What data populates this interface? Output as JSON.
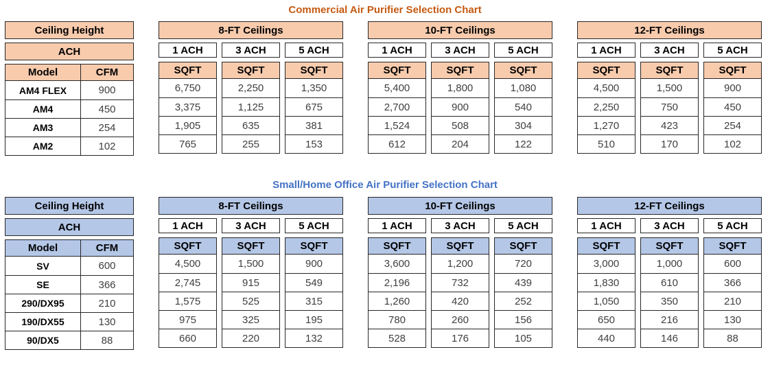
{
  "chart_data": [
    {
      "type": "table",
      "title": "Commercial Air Purifier Selection Chart",
      "title_color": "#C55A11",
      "header_fill": "#F8CBAD",
      "border_color": "#262626",
      "left": {
        "ceiling_height_label": "Ceiling Height",
        "ach_label": "ACH",
        "model_label": "Model",
        "cfm_label": "CFM"
      },
      "rows": [
        {
          "model": "AM4 FLEX",
          "cfm": "900"
        },
        {
          "model": "AM4",
          "cfm": "450"
        },
        {
          "model": "AM3",
          "cfm": "254"
        },
        {
          "model": "AM2",
          "cfm": "102"
        }
      ],
      "groups": [
        {
          "label": "8-FT Ceilings",
          "columns": [
            {
              "ach": "1 ACH",
              "unit": "SQFT",
              "values": [
                "6,750",
                "3,375",
                "1,905",
                "765"
              ]
            },
            {
              "ach": "3 ACH",
              "unit": "SQFT",
              "values": [
                "2,250",
                "1,125",
                "635",
                "255"
              ]
            },
            {
              "ach": "5 ACH",
              "unit": "SQFT",
              "values": [
                "1,350",
                "675",
                "381",
                "153"
              ]
            }
          ]
        },
        {
          "label": "10-FT Ceilings",
          "columns": [
            {
              "ach": "1 ACH",
              "unit": "SQFT",
              "values": [
                "5,400",
                "2,700",
                "1,524",
                "612"
              ]
            },
            {
              "ach": "3 ACH",
              "unit": "SQFT",
              "values": [
                "1,800",
                "900",
                "508",
                "204"
              ]
            },
            {
              "ach": "5 ACH",
              "unit": "SQFT",
              "values": [
                "1,080",
                "540",
                "304",
                "122"
              ]
            }
          ]
        },
        {
          "label": "12-FT Ceilings",
          "columns": [
            {
              "ach": "1 ACH",
              "unit": "SQFT",
              "values": [
                "4,500",
                "2,250",
                "1,270",
                "510"
              ]
            },
            {
              "ach": "3 ACH",
              "unit": "SQFT",
              "values": [
                "1,500",
                "750",
                "423",
                "170"
              ]
            },
            {
              "ach": "5 ACH",
              "unit": "SQFT",
              "values": [
                "900",
                "450",
                "254",
                "102"
              ]
            }
          ]
        }
      ]
    },
    {
      "type": "table",
      "title": "Small/Home Office Air Purifier Selection Chart",
      "title_color": "#4472C4",
      "header_fill": "#B4C7E7",
      "border_color": "#262626",
      "left": {
        "ceiling_height_label": "Ceiling Height",
        "ach_label": "ACH",
        "model_label": "Model",
        "cfm_label": "CFM"
      },
      "rows": [
        {
          "model": "SV",
          "cfm": "600"
        },
        {
          "model": "SE",
          "cfm": "366"
        },
        {
          "model": "290/DX95",
          "cfm": "210"
        },
        {
          "model": "190/DX55",
          "cfm": "130"
        },
        {
          "model": "90/DX5",
          "cfm": "88"
        }
      ],
      "groups": [
        {
          "label": "8-FT Ceilings",
          "columns": [
            {
              "ach": "1 ACH",
              "unit": "SQFT",
              "values": [
                "4,500",
                "2,745",
                "1,575",
                "975",
                "660"
              ]
            },
            {
              "ach": "3 ACH",
              "unit": "SQFT",
              "values": [
                "1,500",
                "915",
                "525",
                "325",
                "220"
              ]
            },
            {
              "ach": "5 ACH",
              "unit": "SQFT",
              "values": [
                "900",
                "549",
                "315",
                "195",
                "132"
              ]
            }
          ]
        },
        {
          "label": "10-FT Ceilings",
          "columns": [
            {
              "ach": "1 ACH",
              "unit": "SQFT",
              "values": [
                "3,600",
                "2,196",
                "1,260",
                "780",
                "528"
              ]
            },
            {
              "ach": "3 ACH",
              "unit": "SQFT",
              "values": [
                "1,200",
                "732",
                "420",
                "260",
                "176"
              ]
            },
            {
              "ach": "5 ACH",
              "unit": "SQFT",
              "values": [
                "720",
                "439",
                "252",
                "156",
                "105"
              ]
            }
          ]
        },
        {
          "label": "12-FT Ceilings",
          "columns": [
            {
              "ach": "1 ACH",
              "unit": "SQFT",
              "values": [
                "3,000",
                "1,830",
                "1,050",
                "650",
                "440"
              ]
            },
            {
              "ach": "3 ACH",
              "unit": "SQFT",
              "values": [
                "1,000",
                "610",
                "350",
                "216",
                "146"
              ]
            },
            {
              "ach": "5 ACH",
              "unit": "SQFT",
              "values": [
                "600",
                "366",
                "210",
                "130",
                "88"
              ]
            }
          ]
        }
      ]
    }
  ]
}
